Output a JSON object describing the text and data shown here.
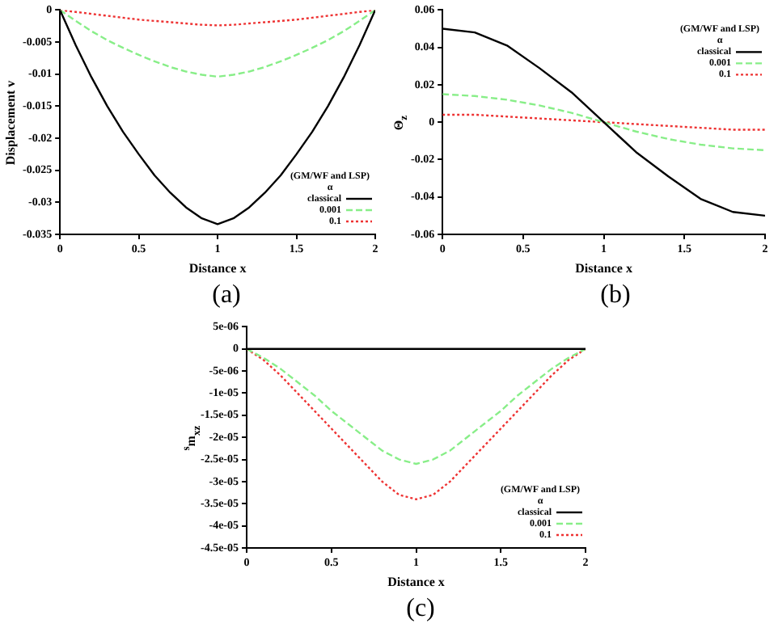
{
  "chart_data": [
    {
      "type": "line",
      "xlabel": "Distance x",
      "ylabel": "Displacement v",
      "legend_title": "(GM/WF and LSP)\nα",
      "legend": "bottom right",
      "grid": false,
      "marker": "none",
      "annotations": [
        "(a)"
      ],
      "x": [
        0,
        0.1,
        0.2,
        0.3,
        0.4,
        0.5,
        0.6,
        0.7,
        0.8,
        0.9,
        1,
        1.1,
        1.2,
        1.3,
        1.4,
        1.5,
        1.6,
        1.7,
        1.8,
        1.9,
        2
      ],
      "xlim": [
        0,
        2
      ],
      "xticks": [
        0,
        0.5,
        1,
        1.5,
        2
      ],
      "ylim": [
        -0.035,
        0
      ],
      "yticks": [
        -0.035,
        -0.03,
        -0.025,
        -0.02,
        -0.015,
        -0.01,
        -0.005,
        0
      ],
      "series": [
        {
          "name": "classical",
          "color": "#000000",
          "line_style": "solid",
          "values": [
            0,
            -0.0055,
            -0.0105,
            -0.015,
            -0.019,
            -0.0225,
            -0.0258,
            -0.0285,
            -0.0308,
            -0.0325,
            -0.0334,
            -0.0325,
            -0.0308,
            -0.0285,
            -0.0258,
            -0.0225,
            -0.019,
            -0.015,
            -0.0105,
            -0.0055,
            0
          ]
        },
        {
          "name": "0.001",
          "color": "#88ee88",
          "line_style": "dashed",
          "values": [
            0,
            -0.0017,
            -0.0033,
            -0.0047,
            -0.0059,
            -0.007,
            -0.008,
            -0.0089,
            -0.0096,
            -0.0101,
            -0.0104,
            -0.0101,
            -0.0096,
            -0.0089,
            -0.008,
            -0.007,
            -0.0059,
            -0.0047,
            -0.0033,
            -0.0017,
            0
          ]
        },
        {
          "name": "0.1",
          "color": "#ee3333",
          "line_style": "dotted",
          "values": [
            0,
            -0.0003,
            -0.0006,
            -0.0009,
            -0.0012,
            -0.0015,
            -0.0017,
            -0.0019,
            -0.0021,
            -0.0023,
            -0.0024,
            -0.0023,
            -0.0021,
            -0.0019,
            -0.0017,
            -0.0015,
            -0.0012,
            -0.0009,
            -0.0006,
            -0.0003,
            0
          ]
        }
      ]
    },
    {
      "type": "line",
      "xlabel": "Distance x",
      "ylabel": "Θ$_{z}$",
      "legend_title": "(GM/WF and LSP)\nα",
      "legend": "top right",
      "grid": false,
      "marker": "none",
      "annotations": [
        "(b)"
      ],
      "x": [
        0,
        0.2,
        0.4,
        0.6,
        0.8,
        1,
        1.2,
        1.4,
        1.6,
        1.8,
        2
      ],
      "xlim": [
        0,
        2
      ],
      "xticks": [
        0,
        0.5,
        1,
        1.5,
        2
      ],
      "ylim": [
        -0.06,
        0.06
      ],
      "yticks": [
        -0.06,
        -0.04,
        -0.02,
        0,
        0.02,
        0.04,
        0.06
      ],
      "series": [
        {
          "name": "classical",
          "color": "#000000",
          "line_style": "solid",
          "values": [
            0.05,
            0.048,
            0.041,
            0.029,
            0.016,
            0,
            -0.016,
            -0.029,
            -0.041,
            -0.048,
            -0.05
          ]
        },
        {
          "name": "0.001",
          "color": "#88ee88",
          "line_style": "dashed",
          "values": [
            0.015,
            0.014,
            0.012,
            0.009,
            0.005,
            0,
            -0.005,
            -0.009,
            -0.012,
            -0.014,
            -0.015
          ]
        },
        {
          "name": "0.1",
          "color": "#ee3333",
          "line_style": "dotted",
          "values": [
            0.004,
            0.004,
            0.003,
            0.002,
            0.001,
            0,
            -0.001,
            -0.002,
            -0.003,
            -0.004,
            -0.004
          ]
        }
      ]
    },
    {
      "type": "line",
      "xlabel": "Distance x",
      "ylabel": "$^{s}$m$_{xz}$",
      "legend_title": "(GM/WF and LSP)\nα",
      "legend": "bottom right",
      "grid": false,
      "marker": "none",
      "annotations": [
        "(c)"
      ],
      "x": [
        0,
        0.1,
        0.2,
        0.3,
        0.4,
        0.5,
        0.6,
        0.7,
        0.8,
        0.9,
        1,
        1.1,
        1.2,
        1.3,
        1.4,
        1.5,
        1.6,
        1.7,
        1.8,
        1.9,
        2
      ],
      "xlim": [
        0,
        2
      ],
      "xticks": [
        0,
        0.5,
        1,
        1.5,
        2
      ],
      "ylim": [
        -4.5e-05,
        5e-06
      ],
      "yticks": [
        {
          "value": -4.5e-05,
          "label": "-4.5e-05"
        },
        {
          "value": -4e-05,
          "label": "-4e-05"
        },
        {
          "value": -3.5e-05,
          "label": "-3.5e-05"
        },
        {
          "value": -3e-05,
          "label": "-3e-05"
        },
        {
          "value": -2.5e-05,
          "label": "-2.5e-05"
        },
        {
          "value": -2e-05,
          "label": "-2e-05"
        },
        {
          "value": -1.5e-05,
          "label": "-1.5e-05"
        },
        {
          "value": -1e-05,
          "label": "-1e-05"
        },
        {
          "value": -5e-06,
          "label": "-5e-06"
        },
        0,
        {
          "value": 5e-06,
          "label": "5e-06"
        }
      ],
      "series": [
        {
          "name": "classical",
          "color": "#000000",
          "line_style": "solid",
          "values": [
            0,
            0,
            0,
            0,
            0,
            0,
            0,
            0,
            0,
            0,
            0,
            0,
            0,
            0,
            0,
            0,
            0,
            0,
            0,
            0,
            0
          ]
        },
        {
          "name": "0.001",
          "color": "#88ee88",
          "line_style": "dashed",
          "values": [
            0,
            -2e-06,
            -4.5e-06,
            -7.5e-06,
            -1.05e-05,
            -1.4e-05,
            -1.7e-05,
            -2e-05,
            -2.3e-05,
            -2.5e-05,
            -2.6e-05,
            -2.5e-05,
            -2.3e-05,
            -2e-05,
            -1.7e-05,
            -1.4e-05,
            -1.05e-05,
            -7.5e-06,
            -4.5e-06,
            -2e-06,
            0
          ]
        },
        {
          "name": "0.1",
          "color": "#ee3333",
          "line_style": "dotted",
          "values": [
            0,
            -2.5e-06,
            -6e-06,
            -1e-05,
            -1.4e-05,
            -1.8e-05,
            -2.2e-05,
            -2.6e-05,
            -3e-05,
            -3.3e-05,
            -3.4e-05,
            -3.3e-05,
            -3e-05,
            -2.6e-05,
            -2.2e-05,
            -1.8e-05,
            -1.4e-05,
            -1e-05,
            -6e-06,
            -2.5e-06,
            0
          ]
        }
      ]
    }
  ]
}
